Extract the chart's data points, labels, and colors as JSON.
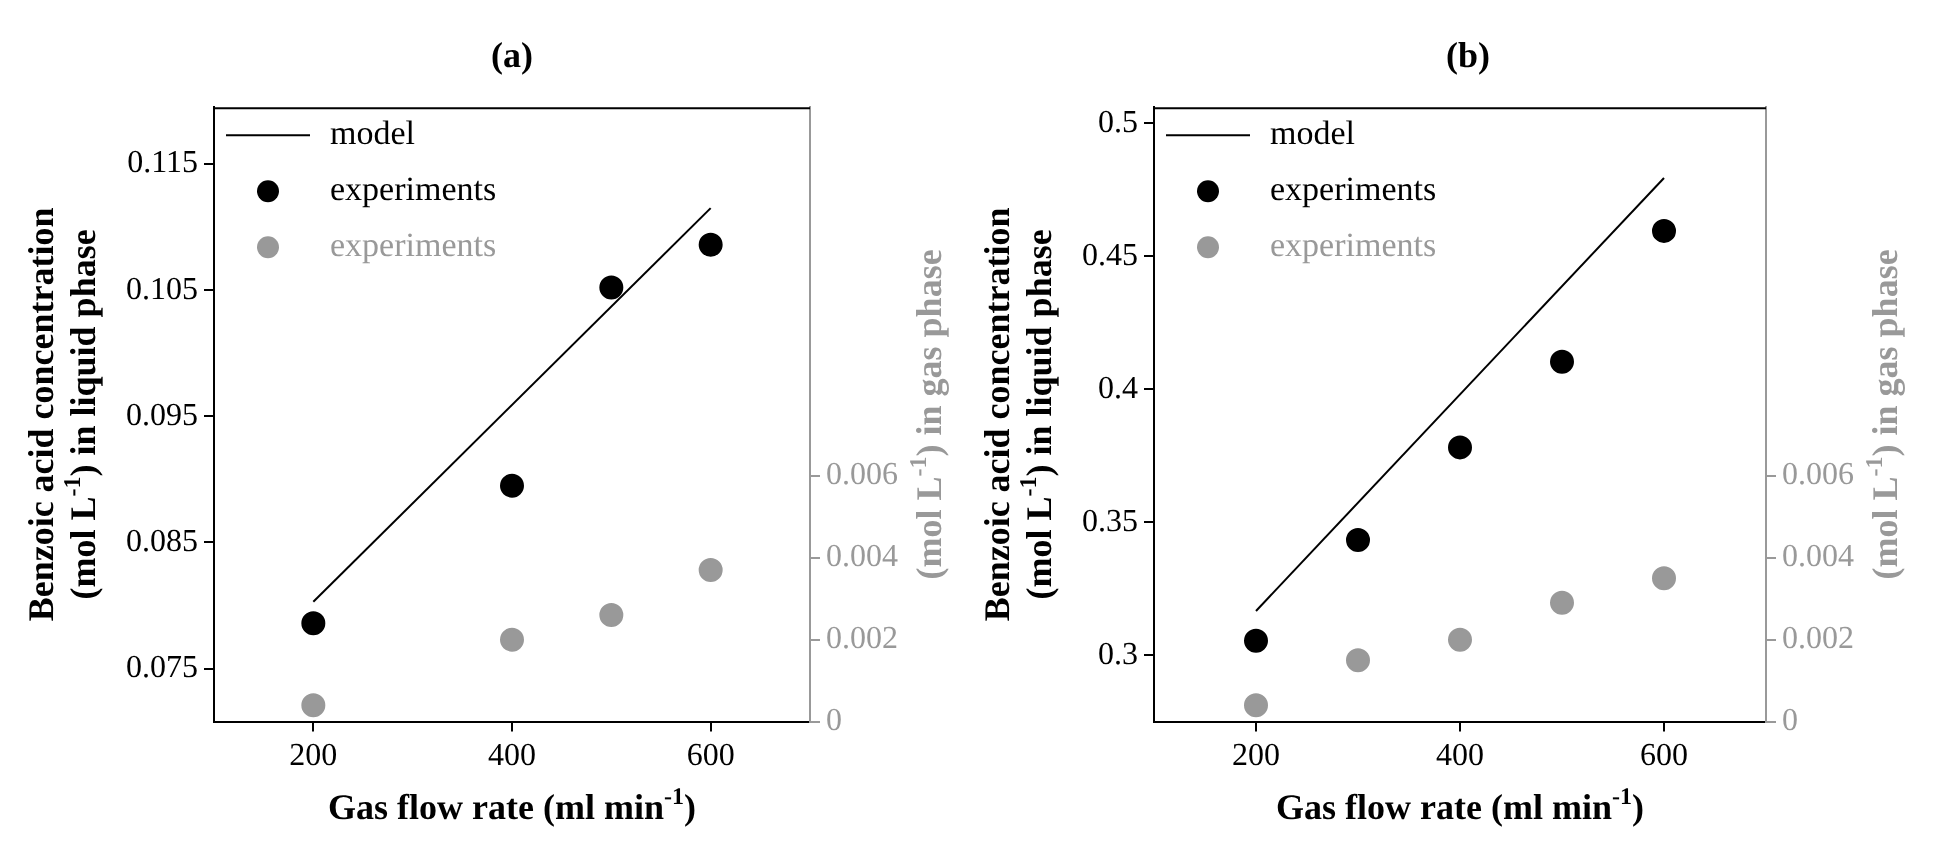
{
  "chart_data": [
    {
      "type": "scatter",
      "title": "(a)",
      "xlabel": "Gas flow rate (ml min$^{-1}$)",
      "ylabel": "Benzoic acid concentration (mol L$^{-1}$) in liquid phase",
      "y2label": "(mol L$^{-1}$) in gas phase",
      "xlim": [
        100,
        700
      ],
      "xticks": [
        200,
        400,
        600
      ],
      "ylim": [
        0.0708,
        0.1195
      ],
      "yticks": [
        0.075,
        0.085,
        0.095,
        0.105,
        0.115
      ],
      "y2lim": [
        0,
        0.015
      ],
      "y2ticks": [
        0,
        0.002,
        0.004,
        0.006
      ],
      "legend": "top left",
      "series": [
        {
          "name": "model",
          "type": "line",
          "color": "#000000",
          "marker": "none",
          "line_style": "solid",
          "x": [
            200,
            600
          ],
          "values": [
            0.0803,
            0.1115
          ]
        },
        {
          "name": "experiments",
          "type": "scatter",
          "color": "#000000",
          "marker": "circle",
          "x": [
            200,
            400,
            500,
            600
          ],
          "values": [
            0.0786,
            0.0895,
            0.1052,
            0.1086
          ]
        },
        {
          "name": "experiments",
          "type": "scatter",
          "color": "#999999",
          "marker": "circle",
          "axis": "y2",
          "x": [
            200,
            400,
            500,
            600
          ],
          "values": [
            0.0004,
            0.002,
            0.0026,
            0.0037
          ]
        }
      ]
    },
    {
      "type": "scatter",
      "title": "(b)",
      "xlabel": "Gas flow rate (ml min$^{-1}$)",
      "ylabel": "Benzoic acid concentration (mol L$^{-1}$) in liquid phase",
      "y2label": "(mol L$^{-1}$) in gas phase",
      "xlim": [
        100,
        700
      ],
      "xticks": [
        200,
        400,
        600
      ],
      "ylim": [
        0.275,
        0.506
      ],
      "yticks": [
        0.3,
        0.35,
        0.4,
        0.45,
        0.5
      ],
      "y2lim": [
        0,
        0.015
      ],
      "y2ticks": [
        0,
        0.002,
        0.004,
        0.006
      ],
      "legend": "top left",
      "series": [
        {
          "name": "model",
          "type": "line",
          "color": "#000000",
          "marker": "none",
          "line_style": "solid",
          "x": [
            200,
            600
          ],
          "values": [
            0.3166,
            0.4794
          ]
        },
        {
          "name": "experiments",
          "type": "scatter",
          "color": "#000000",
          "marker": "circle",
          "x": [
            200,
            300,
            400,
            500,
            600
          ],
          "values": [
            0.3054,
            0.3433,
            0.3781,
            0.4103,
            0.4595
          ]
        },
        {
          "name": "experiments",
          "type": "scatter",
          "color": "#999999",
          "marker": "circle",
          "axis": "y2",
          "x": [
            200,
            300,
            400,
            500,
            600
          ],
          "values": [
            0.0004,
            0.0015,
            0.002,
            0.0029,
            0.0035
          ]
        }
      ]
    }
  ]
}
